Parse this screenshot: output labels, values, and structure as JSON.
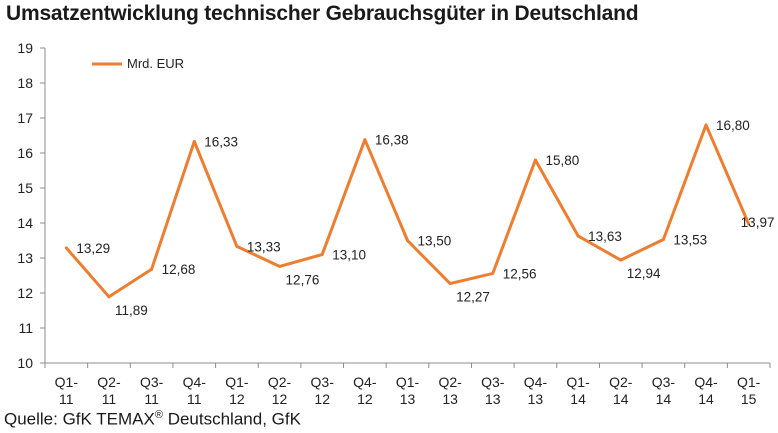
{
  "chart_data": {
    "type": "line",
    "title": "Umsatzentwicklung technischer Gebrauchsgüter in Deutschland",
    "categories": [
      [
        "Q1-",
        "11"
      ],
      [
        "Q2-",
        "11"
      ],
      [
        "Q3-",
        "11"
      ],
      [
        "Q4-",
        "11"
      ],
      [
        "Q1-",
        "12"
      ],
      [
        "Q2-",
        "12"
      ],
      [
        "Q3-",
        "12"
      ],
      [
        "Q4-",
        "12"
      ],
      [
        "Q1-",
        "13"
      ],
      [
        "Q2-",
        "13"
      ],
      [
        "Q3-",
        "13"
      ],
      [
        "Q4-",
        "13"
      ],
      [
        "Q1-",
        "14"
      ],
      [
        "Q2-",
        "14"
      ],
      [
        "Q3-",
        "14"
      ],
      [
        "Q4-",
        "14"
      ],
      [
        "Q1-",
        "15"
      ]
    ],
    "series": [
      {
        "name": "Mrd. EUR",
        "color": "#ED7D31",
        "values": [
          13.29,
          11.89,
          12.68,
          16.33,
          13.33,
          12.76,
          13.1,
          16.38,
          13.5,
          12.27,
          12.56,
          15.8,
          13.63,
          12.94,
          13.53,
          16.8,
          13.97
        ],
        "labels": [
          "13,29",
          "11,89",
          "12,68",
          "16,33",
          "13,33",
          "12,76",
          "13,10",
          "16,38",
          "13,50",
          "12,27",
          "12,56",
          "15,80",
          "13,63",
          "12,94",
          "13,53",
          "16,80",
          "13,97"
        ]
      }
    ],
    "ylim": [
      10,
      19
    ],
    "yticks": [
      "10",
      "11",
      "12",
      "13",
      "14",
      "15",
      "16",
      "17",
      "18",
      "19"
    ],
    "grid": false,
    "legend_position": "top-left"
  },
  "source": {
    "prefix": "Quelle: GfK TEMAX",
    "superscript": "®",
    "suffix": " Deutschland, GfK"
  }
}
